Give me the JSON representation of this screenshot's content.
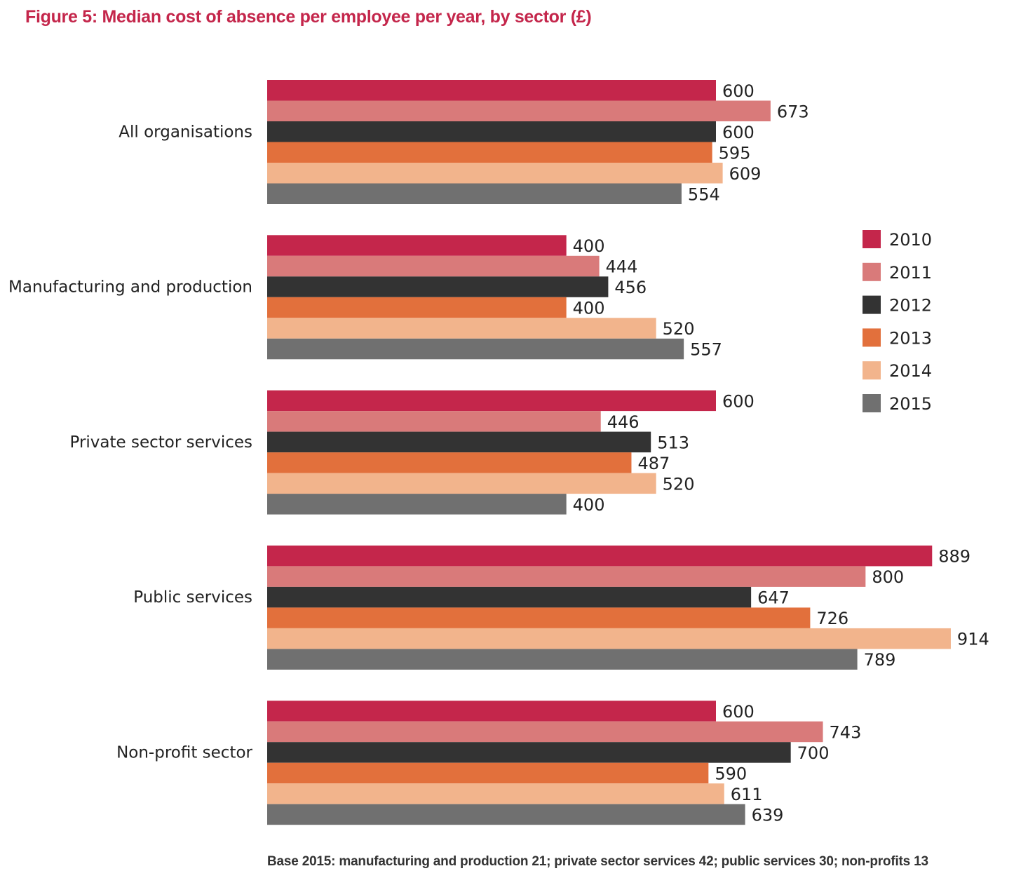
{
  "chart_data": {
    "type": "bar",
    "orientation": "horizontal",
    "title": "Figure 5:  Median cost of absence per employee per year, by sector (£)",
    "footnote": "Base 2015: manufacturing and production 21; private sector services 42; public services 30; non-profits 13",
    "xlabel": "",
    "ylabel": "",
    "xlim": [
      0,
      950
    ],
    "grid": false,
    "legend_position": "right",
    "categories": [
      "All organisations",
      "Manufacturing and production",
      "Private sector services",
      "Public services",
      "Non-profit sector"
    ],
    "series": [
      {
        "name": "2010",
        "color": "#c4264b",
        "values": [
          600,
          400,
          600,
          889,
          600
        ]
      },
      {
        "name": "2011",
        "color": "#d97a7a",
        "values": [
          673,
          444,
          446,
          800,
          743
        ]
      },
      {
        "name": "2012",
        "color": "#333333",
        "values": [
          600,
          456,
          513,
          647,
          700
        ]
      },
      {
        "name": "2013",
        "color": "#e2703c",
        "values": [
          595,
          400,
          487,
          726,
          590
        ]
      },
      {
        "name": "2014",
        "color": "#f2b48c",
        "values": [
          609,
          520,
          520,
          914,
          611
        ]
      },
      {
        "name": "2015",
        "color": "#707070",
        "values": [
          554,
          557,
          400,
          789,
          639
        ]
      }
    ]
  }
}
